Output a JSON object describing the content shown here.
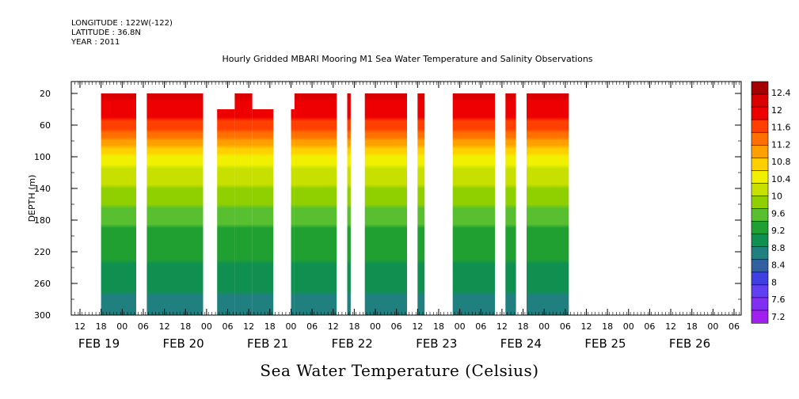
{
  "meta": {
    "longitude": "LONGITUDE : 122W(-122)",
    "latitude": "LATITUDE : 36.8N",
    "year": "YEAR : 2011"
  },
  "title": "Hourly Gridded MBARI Mooring M1 Sea Water Temperature and Salinity Observations",
  "bottom_title": "Sea Water Temperature (Celsius)",
  "chart_data": {
    "type": "heatmap",
    "title": "Hourly Gridded MBARI Mooring M1 Sea Water Temperature and Salinity Observations",
    "xlabel": "",
    "ylabel": "DEPTH (m)",
    "colorbar_label": "Sea Water Temperature (Celsius)",
    "x_hour_ticks": [
      "12",
      "18",
      "00",
      "06",
      "12",
      "18",
      "00",
      "06",
      "12",
      "18",
      "00",
      "06",
      "12",
      "18",
      "00",
      "06",
      "12",
      "18",
      "00",
      "06",
      "12",
      "18",
      "00",
      "06",
      "12",
      "18",
      "00",
      "06",
      "12",
      "18",
      "00",
      "06"
    ],
    "x_day_labels": [
      "FEB 19",
      "FEB 20",
      "FEB 21",
      "FEB 22",
      "FEB 23",
      "FEB 24",
      "FEB 25",
      "FEB 26"
    ],
    "xlim_hours_from_feb19_00": [
      9,
      105
    ],
    "ylim": [
      300,
      5
    ],
    "y_ticks": [
      20,
      60,
      100,
      140,
      180,
      220,
      260,
      300
    ],
    "colorbar_levels": [
      "12.4",
      "12",
      "11.6",
      "11.2",
      "10.8",
      "10.4",
      "10",
      "9.6",
      "9.2",
      "8.8",
      "8.4",
      "8",
      "7.6",
      "7.2"
    ],
    "colors": [
      "#a50000",
      "#d90000",
      "#ee0000",
      "#ff4000",
      "#ff7000",
      "#ffa000",
      "#ffd000",
      "#f0f000",
      "#c8e000",
      "#90d000",
      "#58c030",
      "#20a030",
      "#109050",
      "#208080",
      "#3060a0",
      "#4040e0",
      "#6040f0",
      "#8030f0",
      "#a020f0"
    ],
    "profile": {
      "depth": [
        20,
        40,
        60,
        70,
        80,
        90,
        100,
        110,
        130,
        150,
        170,
        190,
        220,
        260,
        300
      ],
      "temperature": [
        12.3,
        12.0,
        11.7,
        11.3,
        10.9,
        10.5,
        10.1,
        9.8,
        9.5,
        9.2,
        8.9,
        8.6,
        8.3,
        7.9,
        7.6
      ]
    },
    "data_blocks": [
      {
        "start": "FEB 19 18",
        "end": "FEB 20 04",
        "top_depth": 20
      },
      {
        "start": "FEB 20 07",
        "end": "FEB 20 23",
        "top_depth": 20
      },
      {
        "start": "FEB 21 03",
        "end": "FEB 21 08",
        "top_depth": 40
      },
      {
        "start": "FEB 21 08",
        "end": "FEB 21 13",
        "top_depth": 20
      },
      {
        "start": "FEB 21 13",
        "end": "FEB 21 19",
        "top_depth": 40
      },
      {
        "start": "FEB 22 00",
        "end": "FEB 22 01",
        "top_depth": 40
      },
      {
        "start": "FEB 22 01",
        "end": "FEB 22 13",
        "top_depth": 20
      },
      {
        "start": "FEB 22 16",
        "end": "FEB 22 17",
        "top_depth": 20
      },
      {
        "start": "FEB 22 21",
        "end": "FEB 23 09",
        "top_depth": 20
      },
      {
        "start": "FEB 23 12",
        "end": "FEB 23 14",
        "top_depth": 20
      },
      {
        "start": "FEB 23 22",
        "end": "FEB 24 10",
        "top_depth": 20
      },
      {
        "start": "FEB 24 13",
        "end": "FEB 24 16",
        "top_depth": 20
      },
      {
        "start": "FEB 24 19",
        "end": "FEB 25 07",
        "top_depth": 20
      }
    ]
  }
}
